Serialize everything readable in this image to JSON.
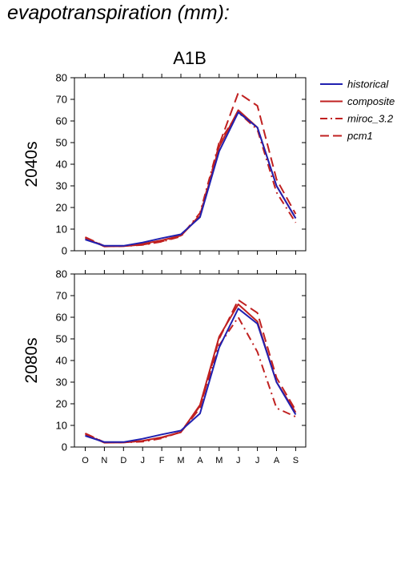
{
  "header": {
    "title": "evapotranspiration (mm):"
  },
  "chart_data": {
    "type": "line",
    "title": "A1B",
    "categories": [
      "O",
      "N",
      "D",
      "J",
      "F",
      "M",
      "A",
      "M",
      "J",
      "J",
      "A",
      "S"
    ],
    "ylim": [
      0,
      80
    ],
    "yticks": [
      0,
      10,
      20,
      30,
      40,
      50,
      60,
      70,
      80
    ],
    "grid": false,
    "legend_position": "top-right, outside plot",
    "legend": [
      {
        "name": "historical",
        "color": "#2020b0",
        "dash": "solid"
      },
      {
        "name": "composite",
        "color": "#c02020",
        "dash": "solid"
      },
      {
        "name": "miroc_3.2",
        "color": "#c02020",
        "dash": "dash-dot"
      },
      {
        "name": "pcm1",
        "color": "#c02020",
        "dash": "dashed"
      }
    ],
    "panels": [
      {
        "ylabel": "2040s",
        "series": [
          {
            "name": "historical",
            "values": [
              5.2,
              2.3,
              2.3,
              3.8,
              5.8,
              7.6,
              15.5,
              46,
              64,
              57,
              30,
              15
            ]
          },
          {
            "name": "composite",
            "values": [
              5.8,
              2.0,
              2.1,
              3.2,
              4.8,
              7.0,
              16.0,
              48,
              65,
              57,
              30,
              15
            ]
          },
          {
            "name": "miroc_3.2",
            "values": [
              6.2,
              2.0,
              2.1,
              2.7,
              4.2,
              6.6,
              17.5,
              50,
              64,
              56,
              27,
              13
            ]
          },
          {
            "name": "pcm1",
            "values": [
              6.3,
              2.2,
              2.1,
              2.8,
              4.3,
              6.9,
              16.5,
              49,
              73,
              67,
              33,
              17
            ]
          }
        ]
      },
      {
        "ylabel": "2080s",
        "series": [
          {
            "name": "historical",
            "values": [
              5.2,
              2.3,
              2.3,
              3.8,
              5.8,
              7.6,
              15.5,
              46,
              64,
              57,
              30,
              15
            ]
          },
          {
            "name": "composite",
            "values": [
              5.8,
              2.0,
              2.1,
              2.9,
              4.5,
              6.8,
              19.5,
              51,
              66,
              58,
              30,
              16
            ]
          },
          {
            "name": "miroc_3.2",
            "values": [
              6.3,
              2.1,
              2.1,
              2.5,
              4.0,
              7.0,
              19.0,
              47,
              60,
              44,
              18,
              14
            ]
          },
          {
            "name": "pcm1",
            "values": [
              6.3,
              2.2,
              2.1,
              2.8,
              4.3,
              6.9,
              18.0,
              50,
              68,
              62,
              32,
              17
            ]
          }
        ]
      }
    ]
  }
}
